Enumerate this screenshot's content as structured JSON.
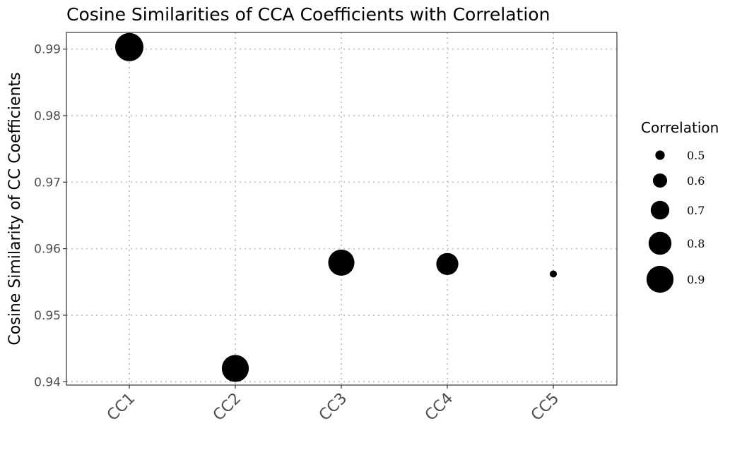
{
  "chart_data": {
    "type": "scatter",
    "title": "Cosine Similarities of CCA Coefficients with Correlation",
    "xlabel": "",
    "ylabel": "Cosine Similarity of CC Coefficients",
    "categories": [
      "CC1",
      "CC2",
      "CC3",
      "CC4",
      "CC5"
    ],
    "values": [
      0.9903,
      0.942,
      0.9579,
      0.9577,
      0.9562
    ],
    "size_values": [
      0.93,
      0.9,
      0.88,
      0.78,
      0.46
    ],
    "size_variable": "Correlation",
    "ylim": [
      0.9395,
      0.9925
    ],
    "yticks": [
      0.94,
      0.95,
      0.96,
      0.97,
      0.98,
      0.99
    ],
    "ytick_labels": [
      "0.94",
      "0.95",
      "0.96",
      "0.97",
      "0.98",
      "0.99"
    ],
    "legend": {
      "title": "Correlation",
      "position": "right",
      "entries": [
        {
          "label": "0.5",
          "value": 0.5
        },
        {
          "label": "0.6",
          "value": 0.6
        },
        {
          "label": "0.7",
          "value": 0.7
        },
        {
          "label": "0.8",
          "value": 0.8
        },
        {
          "label": "0.9",
          "value": 0.9
        }
      ]
    },
    "grid": true,
    "point_color": "#000000"
  }
}
